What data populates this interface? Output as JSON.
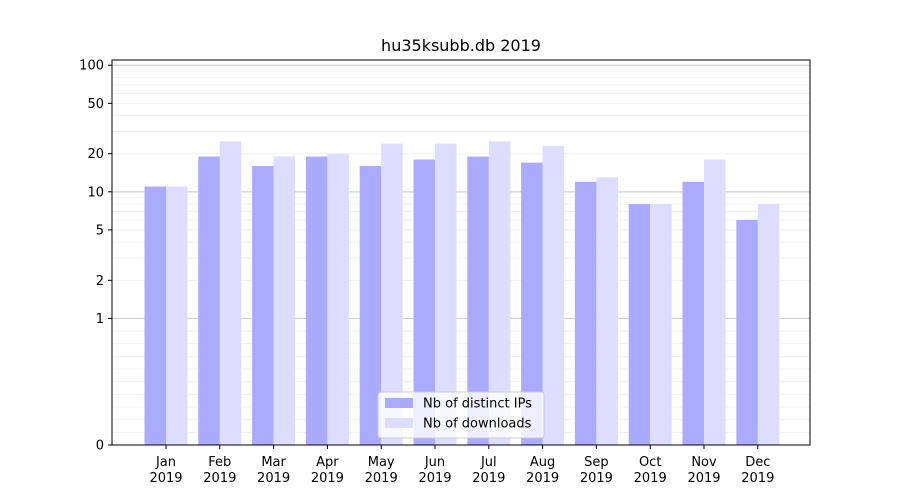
{
  "chart_data": {
    "type": "bar",
    "title": "hu35ksubb.db 2019",
    "xlabel": "",
    "ylabel": "",
    "categories": [
      [
        "Jan",
        "2019"
      ],
      [
        "Feb",
        "2019"
      ],
      [
        "Mar",
        "2019"
      ],
      [
        "Apr",
        "2019"
      ],
      [
        "May",
        "2019"
      ],
      [
        "Jun",
        "2019"
      ],
      [
        "Jul",
        "2019"
      ],
      [
        "Aug",
        "2019"
      ],
      [
        "Sep",
        "2019"
      ],
      [
        "Oct",
        "2019"
      ],
      [
        "Nov",
        "2019"
      ],
      [
        "Dec",
        "2019"
      ]
    ],
    "series": [
      {
        "name": "Nb of distinct IPs",
        "color": "#aaaaff",
        "values": [
          11,
          19,
          16,
          19,
          16,
          18,
          19,
          17,
          12,
          8,
          12,
          6
        ]
      },
      {
        "name": "Nb of downloads",
        "color": "#ddddff",
        "values": [
          11,
          25,
          19,
          20,
          24,
          24,
          25,
          23,
          13,
          8,
          18,
          8
        ]
      }
    ],
    "y_scale": "symlog",
    "ylim": [
      0,
      110
    ],
    "y_ticks": [
      0,
      1,
      2,
      5,
      10,
      20,
      50,
      100
    ],
    "grid": true,
    "legend_position": "bottom-center"
  }
}
